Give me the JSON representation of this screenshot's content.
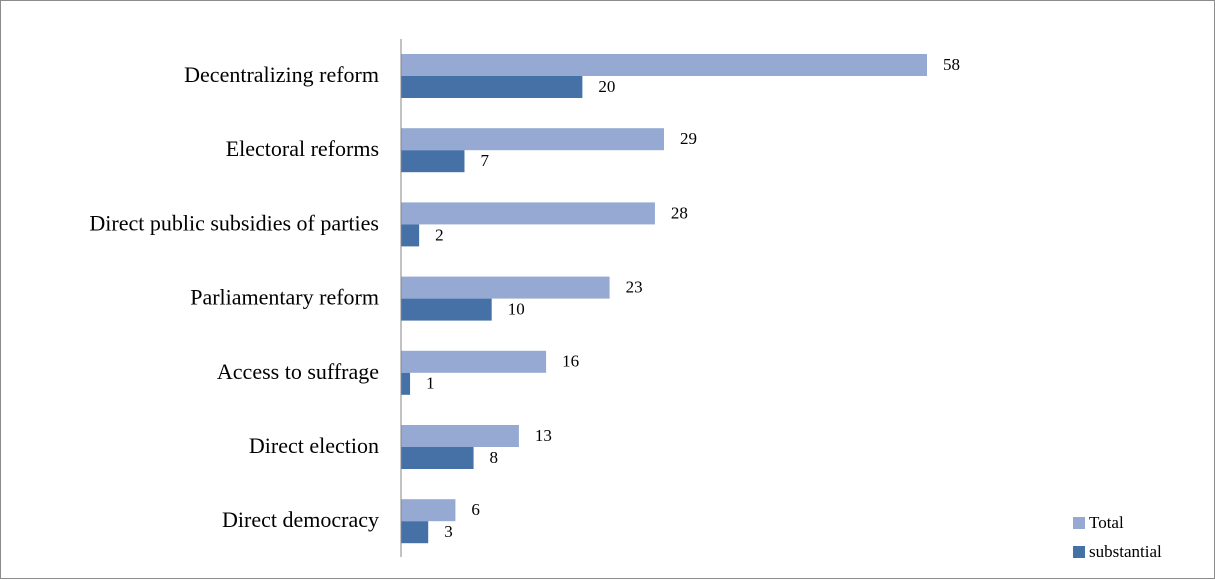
{
  "chart_data": {
    "type": "bar",
    "orientation": "horizontal",
    "categories": [
      "Decentralizing reform",
      "Electoral reforms",
      "Direct public subsidies of parties",
      "Parliamentary reform",
      "Access to suffrage",
      "Direct election",
      "Direct democracy"
    ],
    "series": [
      {
        "name": "Total",
        "values": [
          58,
          29,
          28,
          23,
          16,
          13,
          6
        ],
        "color": "#95a9d2"
      },
      {
        "name": "substantial",
        "values": [
          20,
          7,
          2,
          10,
          1,
          8,
          3
        ],
        "color": "#4571a7"
      }
    ],
    "xlim": [
      0,
      58
    ],
    "grid": false,
    "data_labels": true,
    "legend_position": "bottom-right"
  }
}
